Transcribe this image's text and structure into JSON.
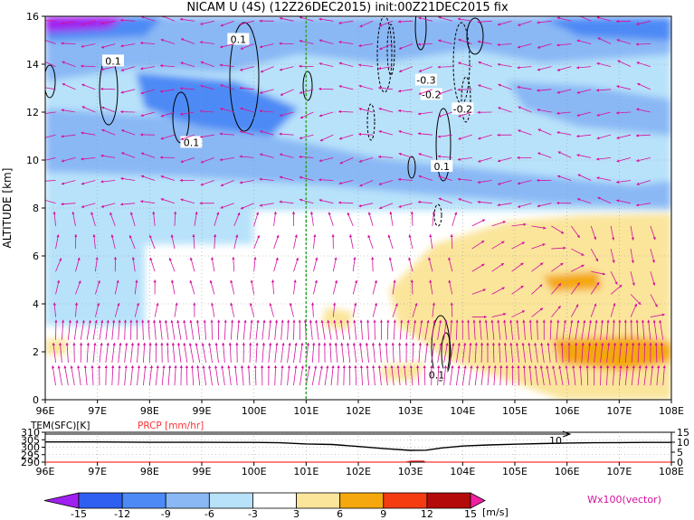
{
  "title": "NICAM U (4S) (12Z26DEC2015) init:00Z21DEC2015 fix",
  "chart_data": [
    {
      "type": "heatmap",
      "name": "zonal-wind cross section",
      "ylabel": "ALTITUDE [km]",
      "xlim": [
        96,
        108
      ],
      "ylim": [
        0,
        16
      ],
      "x_ticks": [
        "96E",
        "97E",
        "98E",
        "99E",
        "100E",
        "101E",
        "102E",
        "103E",
        "104E",
        "105E",
        "106E",
        "107E",
        "108E"
      ],
      "y_ticks": [
        "0",
        "2",
        "4",
        "6",
        "8",
        "10",
        "12",
        "14",
        "16"
      ],
      "marked_longitude": 101,
      "contour_labels": [
        {
          "text": "0.1",
          "x": 99.7,
          "y": 15.0
        },
        {
          "text": "0.1",
          "x": 97.3,
          "y": 14.1
        },
        {
          "text": "0.1",
          "x": 98.8,
          "y": 10.7
        },
        {
          "text": "-0.3",
          "x": 103.3,
          "y": 13.3
        },
        {
          "text": "-0.2",
          "x": 103.4,
          "y": 12.7
        },
        {
          "text": "-0.2",
          "x": 104.0,
          "y": 12.1
        },
        {
          "text": "0.1",
          "x": 103.6,
          "y": 9.7
        },
        {
          "text": "0.1",
          "x": 103.5,
          "y": 1.0
        }
      ]
    },
    {
      "type": "line",
      "name": "surface panel",
      "labels": {
        "left": "TEM(SFC)[K]",
        "right": "PRCP [mm/hr]"
      },
      "y_left_ticks": [
        "290",
        "295",
        "300",
        "305",
        "310"
      ],
      "y_right_ticks": [
        "0",
        "5",
        "10",
        "15"
      ],
      "y_left_lim": [
        290,
        310
      ],
      "y_right_lim": [
        0,
        15
      ],
      "x": [
        96,
        97,
        98,
        99,
        100,
        100.5,
        101,
        101.5,
        102,
        102.5,
        103,
        103.3,
        103.6,
        104,
        104.5,
        105,
        105.5,
        106,
        106.5,
        107,
        107.5,
        108
      ],
      "temperature": [
        303.5,
        303.5,
        303.3,
        303.3,
        303.2,
        303,
        302.2,
        301.8,
        300.5,
        299,
        297.9,
        298,
        299.5,
        300.8,
        301.5,
        302,
        302.4,
        302.8,
        303,
        303.1,
        303.2,
        303.2
      ],
      "precip_annotation": "10"
    }
  ],
  "colorbar": {
    "ticks": [
      "-15",
      "-12",
      "-9",
      "-6",
      "-3",
      "3",
      "6",
      "9",
      "12",
      "15"
    ],
    "unit": "[m/s]",
    "colors": [
      "#a020f0",
      "#2e5ff0",
      "#4d8af5",
      "#8ab8f5",
      "#b8e2fa",
      "#ffffff",
      "#fbe59b",
      "#f5a80d",
      "#f53b10",
      "#b40a0a",
      "#f020a0"
    ]
  },
  "vector_label": "Wx100(vector)",
  "colors": {
    "vector": "#d4109c",
    "marker_line": "#22aa22",
    "precip": "#ff3333"
  }
}
